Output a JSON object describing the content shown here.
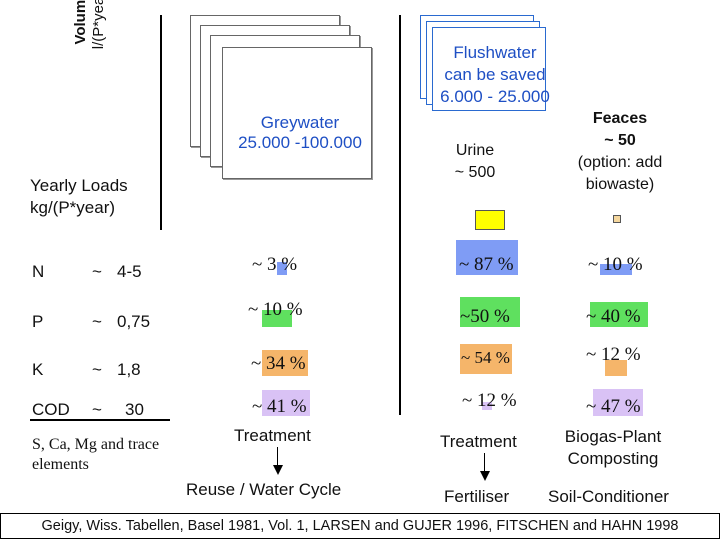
{
  "volume_label": {
    "title": "Volume",
    "unit": "l/(P*year)"
  },
  "yearly_loads": {
    "title": "Yearly Loads",
    "unit": "kg/(P*year)"
  },
  "columns": {
    "greywater": {
      "name": "Greywater",
      "volume": "25.000 -100.000"
    },
    "flushwater": {
      "line1": "Flushwater",
      "line2": "can be saved",
      "line3": "6.000 - 25.000"
    },
    "urine": {
      "name": "Urine",
      "volume": "~ 500"
    },
    "faeces": {
      "name": "Feaces",
      "volume": "~ 50",
      "note1": "(option: add",
      "note2": "biowaste)"
    }
  },
  "rows": [
    {
      "symbol": "N",
      "tilde": "~",
      "load": "4-5",
      "grey": "~ 3 %",
      "urine": "~ 87 %",
      "faeces": "~ 10 %"
    },
    {
      "symbol": "P",
      "tilde": "~",
      "load": "0,75",
      "grey": "~ 10 %",
      "urine": "~50 %",
      "faeces": "~ 40 %"
    },
    {
      "symbol": "K",
      "tilde": "~",
      "load": "1,8",
      "grey": "~ 34 %",
      "urine": "~ 54 %",
      "faeces": "~ 12 %"
    },
    {
      "symbol": "COD",
      "tilde": "~",
      "load": "30",
      "grey": "~ 41 %",
      "urine": "~ 12 %",
      "faeces": "~ 47 %"
    }
  ],
  "trace_elements": {
    "line1": "S, Ca, Mg and trace",
    "line2": "elements"
  },
  "treatment": {
    "grey": {
      "label": "Treatment",
      "outcome": "Reuse / Water Cycle"
    },
    "urine": {
      "label": "Treatment",
      "outcome": "Fertiliser"
    },
    "faeces": {
      "label1": "Biogas-Plant",
      "label2": "Composting",
      "outcome": "Soil-Conditioner"
    }
  },
  "colors": {
    "N": "#7f9cf5",
    "P": "#5fe05f",
    "K": "#f5b56a",
    "COD": "#d9c2f5",
    "urine_box": "#ffff00",
    "text_blue": "#1e4fc4"
  },
  "source": "Geigy, Wiss. Tabellen, Basel 1981, Vol. 1, LARSEN and GUJER 1996, FITSCHEN and HAHN 1998"
}
